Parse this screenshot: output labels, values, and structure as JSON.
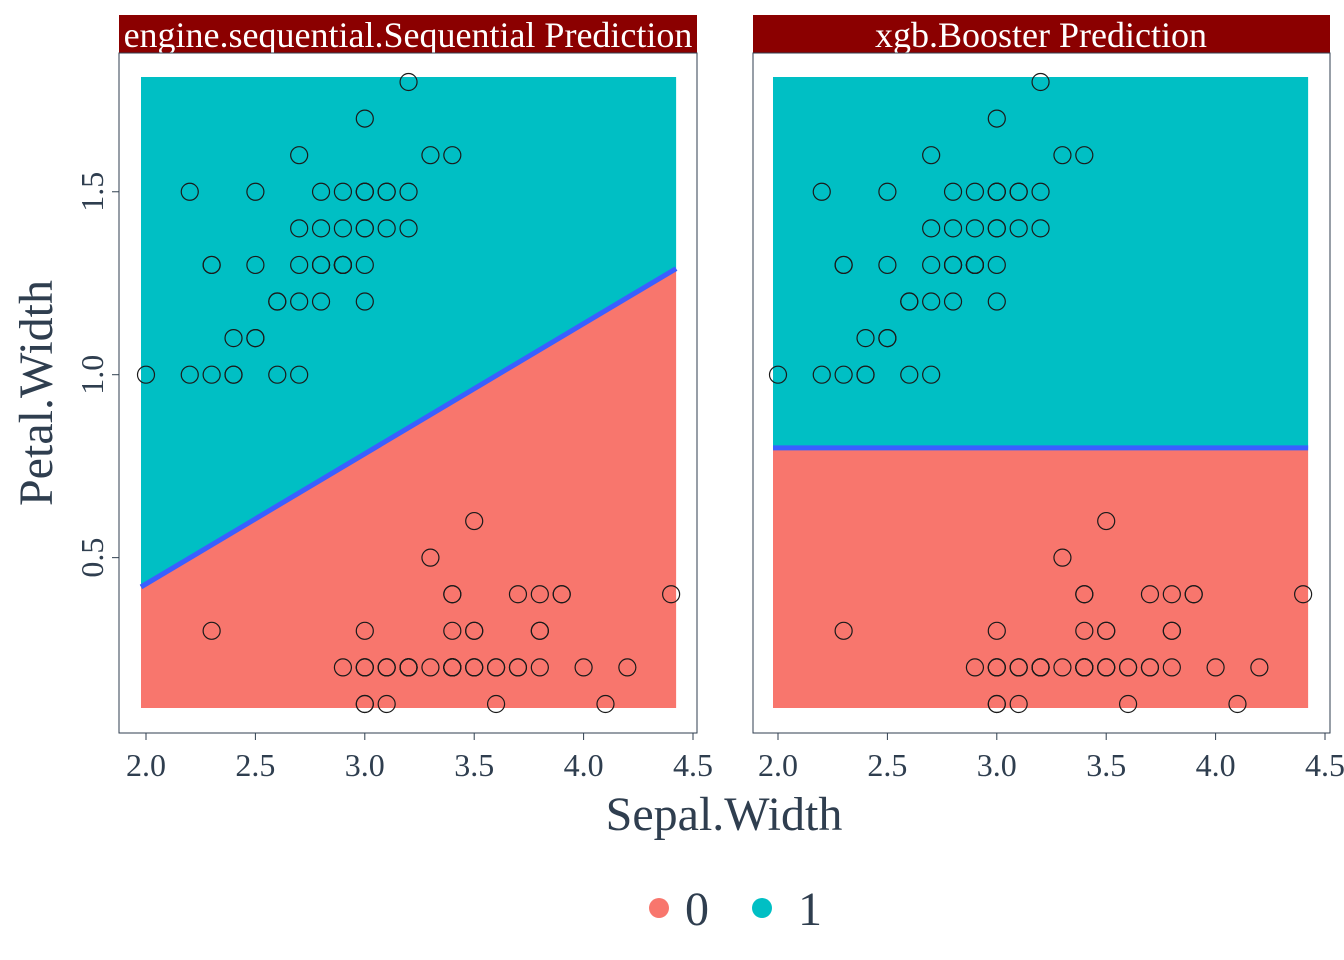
{
  "chart_data": [
    {
      "type": "scatter",
      "title": "engine.sequential.Sequential  Prediction",
      "xlabel": "Sepal.Width",
      "ylabel": "Petal.Width",
      "xlim": [
        2.0,
        4.4
      ],
      "ylim": [
        0.1,
        1.8
      ],
      "xticks": [
        2.0,
        2.5,
        3.0,
        3.5,
        4.0,
        4.5
      ],
      "yticks": [
        0.5,
        1.0,
        1.5
      ],
      "region": {
        "class0_color": "#F8766D",
        "class1_color": "#00BFC4",
        "boundary_color": "#3a5fff",
        "boundary": [
          [
            2.0,
            0.42
          ],
          [
            4.4,
            1.29
          ]
        ]
      },
      "points": [
        [
          3.5,
          0.2
        ],
        [
          3.0,
          0.2
        ],
        [
          3.2,
          0.2
        ],
        [
          3.1,
          0.2
        ],
        [
          3.6,
          0.2
        ],
        [
          3.9,
          0.4
        ],
        [
          3.4,
          0.3
        ],
        [
          3.4,
          0.2
        ],
        [
          2.9,
          0.2
        ],
        [
          3.1,
          0.1
        ],
        [
          3.7,
          0.2
        ],
        [
          3.4,
          0.2
        ],
        [
          3.0,
          0.1
        ],
        [
          3.0,
          0.1
        ],
        [
          4.0,
          0.2
        ],
        [
          4.4,
          0.4
        ],
        [
          3.9,
          0.4
        ],
        [
          3.5,
          0.3
        ],
        [
          3.8,
          0.3
        ],
        [
          3.8,
          0.3
        ],
        [
          3.4,
          0.2
        ],
        [
          3.7,
          0.4
        ],
        [
          3.6,
          0.2
        ],
        [
          3.3,
          0.5
        ],
        [
          3.4,
          0.2
        ],
        [
          3.0,
          0.2
        ],
        [
          3.4,
          0.4
        ],
        [
          3.5,
          0.2
        ],
        [
          3.4,
          0.2
        ],
        [
          3.2,
          0.2
        ],
        [
          3.1,
          0.2
        ],
        [
          3.4,
          0.4
        ],
        [
          4.1,
          0.1
        ],
        [
          4.2,
          0.2
        ],
        [
          3.1,
          0.2
        ],
        [
          3.2,
          0.2
        ],
        [
          3.5,
          0.2
        ],
        [
          3.6,
          0.1
        ],
        [
          3.0,
          0.2
        ],
        [
          3.4,
          0.2
        ],
        [
          3.5,
          0.3
        ],
        [
          2.3,
          0.3
        ],
        [
          3.2,
          0.2
        ],
        [
          3.5,
          0.6
        ],
        [
          3.8,
          0.4
        ],
        [
          3.0,
          0.3
        ],
        [
          3.8,
          0.2
        ],
        [
          3.2,
          0.2
        ],
        [
          3.7,
          0.2
        ],
        [
          3.3,
          0.2
        ],
        [
          3.2,
          1.4
        ],
        [
          3.2,
          1.5
        ],
        [
          3.1,
          1.5
        ],
        [
          2.3,
          1.3
        ],
        [
          2.8,
          1.5
        ],
        [
          2.8,
          1.3
        ],
        [
          3.3,
          1.6
        ],
        [
          2.4,
          1.0
        ],
        [
          2.9,
          1.3
        ],
        [
          2.7,
          1.4
        ],
        [
          2.0,
          1.0
        ],
        [
          3.0,
          1.5
        ],
        [
          2.2,
          1.0
        ],
        [
          2.9,
          1.4
        ],
        [
          2.9,
          1.3
        ],
        [
          3.1,
          1.4
        ],
        [
          3.0,
          1.5
        ],
        [
          2.7,
          1.0
        ],
        [
          2.2,
          1.5
        ],
        [
          2.5,
          1.1
        ],
        [
          3.2,
          1.8
        ],
        [
          2.8,
          1.3
        ],
        [
          2.5,
          1.5
        ],
        [
          2.8,
          1.2
        ],
        [
          2.9,
          1.3
        ],
        [
          3.0,
          1.4
        ],
        [
          2.8,
          1.4
        ],
        [
          3.0,
          1.7
        ],
        [
          2.9,
          1.5
        ],
        [
          2.6,
          1.0
        ],
        [
          2.4,
          1.1
        ],
        [
          2.4,
          1.0
        ],
        [
          2.7,
          1.2
        ],
        [
          2.7,
          1.6
        ],
        [
          3.0,
          1.5
        ],
        [
          3.4,
          1.6
        ],
        [
          3.1,
          1.5
        ],
        [
          2.3,
          1.3
        ],
        [
          3.0,
          1.3
        ],
        [
          2.5,
          1.3
        ],
        [
          2.6,
          1.2
        ],
        [
          3.0,
          1.4
        ],
        [
          2.6,
          1.2
        ],
        [
          2.3,
          1.0
        ],
        [
          2.7,
          1.3
        ],
        [
          3.0,
          1.2
        ],
        [
          2.9,
          1.3
        ],
        [
          2.9,
          1.3
        ],
        [
          2.5,
          1.1
        ],
        [
          2.8,
          1.3
        ]
      ]
    },
    {
      "type": "scatter",
      "title": "xgb.Booster  Prediction",
      "xlabel": "Sepal.Width",
      "ylabel": "Petal.Width",
      "xlim": [
        2.0,
        4.4
      ],
      "ylim": [
        0.1,
        1.8
      ],
      "xticks": [
        2.0,
        2.5,
        3.0,
        3.5,
        4.0,
        4.5
      ],
      "yticks": [
        0.5,
        1.0,
        1.5
      ],
      "region": {
        "class0_color": "#F8766D",
        "class1_color": "#00BFC4",
        "boundary_color": "#3a5fff",
        "boundary": [
          [
            2.0,
            0.8
          ],
          [
            4.4,
            0.8
          ]
        ]
      },
      "points": "same_as_left"
    }
  ],
  "axis": {
    "xlabel": "Sepal.Width",
    "ylabel": "Petal.Width",
    "x_tick_labels": [
      "2.0",
      "2.5",
      "3.0",
      "3.5",
      "4.0",
      "4.5"
    ],
    "y_tick_labels": [
      "0.5",
      "1.0",
      "1.5"
    ]
  },
  "panels": {
    "left_title": "engine.sequential.Sequential  Prediction",
    "right_title": "xgb.Booster  Prediction",
    "strip_color": "#8B0000"
  },
  "legend": {
    "items": [
      {
        "label": "0",
        "color": "#F8766D"
      },
      {
        "label": "1",
        "color": "#00BFC4"
      }
    ]
  }
}
